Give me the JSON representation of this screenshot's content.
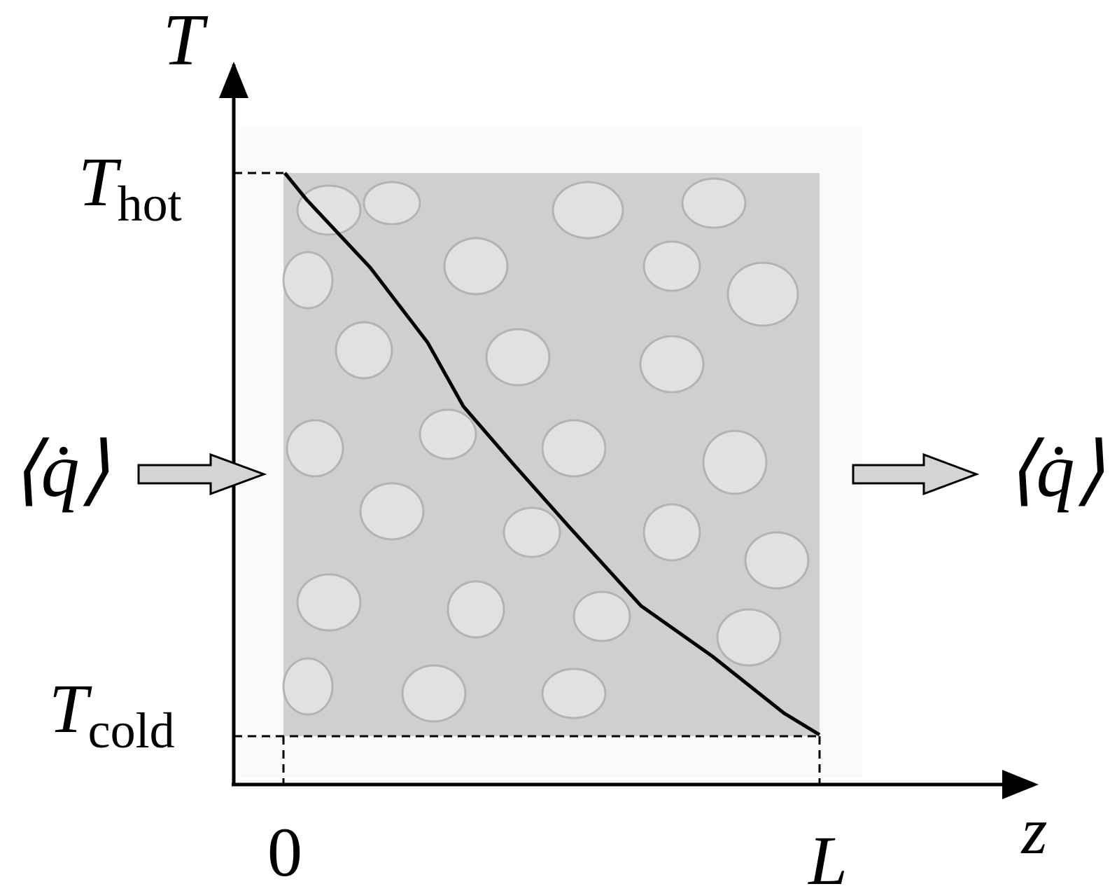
{
  "axes": {
    "y_label": "T",
    "x_label": "z"
  },
  "ticks": {
    "t_hot": {
      "symbol": "T",
      "subscript": "hot"
    },
    "t_cold": {
      "symbol": "T",
      "subscript": "cold"
    },
    "z_start": "0",
    "z_end": "L"
  },
  "heat_flux": {
    "inlet": "⟨q̇⟩",
    "outlet": "⟨q̇⟩"
  }
}
